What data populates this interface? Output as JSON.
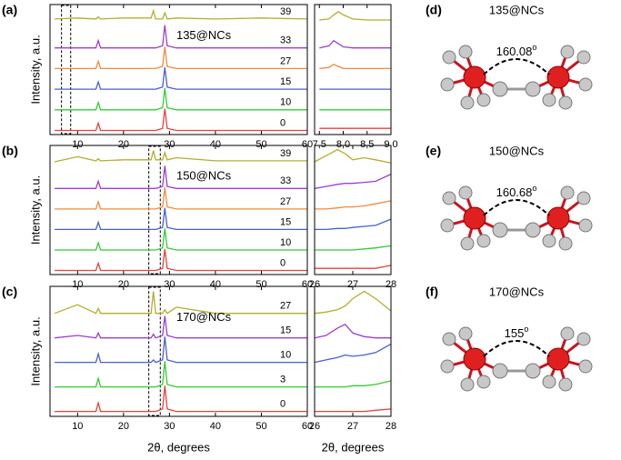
{
  "chart_data": [
    {
      "type": "line",
      "panel_label": "(a)",
      "annotation": "135@NCs",
      "ylabel": "Intensity, a.u.",
      "x": [
        5,
        10,
        14,
        14.5,
        15,
        20,
        26,
        26.5,
        27,
        28.5,
        29,
        29.5,
        31.5,
        40,
        50,
        60
      ],
      "xlim": [
        4,
        60
      ],
      "xticks": [
        10,
        20,
        30,
        40,
        50,
        60
      ],
      "ylim": [
        0,
        6.3
      ],
      "highlight_x": [
        6.5,
        8.5
      ],
      "series": [
        {
          "name": "0",
          "color": "#e8413c",
          "values": [
            0.2,
            0.2,
            0.2,
            0.55,
            0.2,
            0.2,
            0.2,
            0.2,
            0.2,
            0.3,
            1.25,
            0.3,
            0.2,
            0.2,
            0.2,
            0.2
          ]
        },
        {
          "name": "10",
          "color": "#33cc33",
          "values": [
            1.2,
            1.2,
            1.2,
            1.55,
            1.2,
            1.2,
            1.2,
            1.2,
            1.2,
            1.3,
            2.25,
            1.3,
            1.2,
            1.2,
            1.2,
            1.2
          ]
        },
        {
          "name": "15",
          "color": "#4a5fd0",
          "values": [
            2.2,
            2.2,
            2.2,
            2.55,
            2.2,
            2.2,
            2.2,
            2.2,
            2.2,
            2.3,
            3.25,
            2.3,
            2.2,
            2.2,
            2.2,
            2.2
          ]
        },
        {
          "name": "27",
          "color": "#f08a3c",
          "values": [
            3.2,
            3.2,
            3.2,
            3.55,
            3.2,
            3.2,
            3.2,
            3.2,
            3.2,
            3.3,
            4.25,
            3.3,
            3.2,
            3.2,
            3.2,
            3.2
          ]
        },
        {
          "name": "33",
          "color": "#9b3fd0",
          "values": [
            4.2,
            4.2,
            4.2,
            4.55,
            4.2,
            4.2,
            4.2,
            4.2,
            4.2,
            4.3,
            5.3,
            4.3,
            4.2,
            4.2,
            4.2,
            4.2
          ]
        },
        {
          "name": "39",
          "color": "#b5ad2e",
          "values": [
            5.6,
            5.65,
            5.6,
            5.7,
            5.6,
            5.65,
            5.65,
            6.0,
            5.6,
            5.6,
            5.9,
            5.6,
            5.65,
            5.6,
            5.65,
            5.6
          ]
        }
      ]
    },
    {
      "type": "line",
      "x": [
        7.5,
        7.7,
        7.8,
        7.9,
        8.0,
        8.2,
        8.5,
        9.0
      ],
      "xlim": [
        7.4,
        9.0
      ],
      "xticks": [
        {
          "value": 7.5,
          "label": "7,5"
        },
        {
          "value": 8.0,
          "label": "8,0"
        },
        {
          "value": 8.5,
          "label": "8,5"
        },
        {
          "value": 9.0,
          "label": "9,0"
        }
      ],
      "ylim": [
        0,
        6.3
      ],
      "series": [
        {
          "color": "#e8413c",
          "values": [
            0.3,
            0.3,
            0.3,
            0.3,
            0.3,
            0.3,
            0.3,
            0.3
          ]
        },
        {
          "color": "#33cc33",
          "values": [
            1.2,
            1.2,
            1.2,
            1.2,
            1.2,
            1.2,
            1.2,
            1.2
          ]
        },
        {
          "color": "#4a5fd0",
          "values": [
            2.2,
            2.2,
            2.2,
            2.2,
            2.2,
            2.2,
            2.2,
            2.2
          ]
        },
        {
          "color": "#f08a3c",
          "values": [
            3.2,
            3.25,
            3.4,
            3.3,
            3.2,
            3.2,
            3.2,
            3.2
          ]
        },
        {
          "color": "#9b3fd0",
          "values": [
            4.2,
            4.3,
            4.55,
            4.4,
            4.25,
            4.2,
            4.2,
            4.2
          ]
        },
        {
          "color": "#b5ad2e",
          "values": [
            5.55,
            5.6,
            5.8,
            5.95,
            5.8,
            5.6,
            5.55,
            5.55
          ]
        }
      ]
    },
    {
      "type": "line",
      "panel_label": "(b)",
      "annotation": "150@NCs",
      "ylabel": "Intensity, a.u.",
      "x": [
        5,
        10,
        14,
        14.5,
        15,
        20,
        26,
        26.5,
        27,
        28.5,
        29,
        29.5,
        31.5,
        40,
        50,
        60
      ],
      "xlim": [
        4,
        60
      ],
      "xticks": [
        10,
        20,
        30,
        40,
        50,
        60
      ],
      "ylim": [
        0,
        6.3
      ],
      "highlight_x": [
        25.5,
        28
      ],
      "series": [
        {
          "name": "0",
          "color": "#e8413c",
          "values": [
            0.2,
            0.2,
            0.2,
            0.55,
            0.2,
            0.2,
            0.2,
            0.2,
            0.2,
            0.3,
            1.25,
            0.3,
            0.2,
            0.2,
            0.2,
            0.2
          ]
        },
        {
          "name": "10",
          "color": "#33cc33",
          "values": [
            1.2,
            1.2,
            1.2,
            1.55,
            1.2,
            1.2,
            1.2,
            1.2,
            1.2,
            1.3,
            2.25,
            1.3,
            1.2,
            1.2,
            1.2,
            1.2
          ]
        },
        {
          "name": "15",
          "color": "#4a5fd0",
          "values": [
            2.2,
            2.2,
            2.2,
            2.55,
            2.2,
            2.2,
            2.2,
            2.2,
            2.2,
            2.3,
            3.25,
            2.3,
            2.2,
            2.2,
            2.2,
            2.2
          ]
        },
        {
          "name": "27",
          "color": "#f08a3c",
          "values": [
            3.2,
            3.2,
            3.2,
            3.55,
            3.2,
            3.2,
            3.2,
            3.2,
            3.2,
            3.3,
            4.25,
            3.3,
            3.2,
            3.2,
            3.2,
            3.2
          ]
        },
        {
          "name": "33",
          "color": "#9b3fd0",
          "values": [
            4.2,
            4.2,
            4.2,
            4.55,
            4.2,
            4.2,
            4.2,
            4.2,
            4.2,
            4.3,
            5.3,
            4.3,
            4.2,
            4.2,
            4.2,
            4.2
          ]
        },
        {
          "name": "39",
          "color": "#b5ad2e",
          "values": [
            5.5,
            5.75,
            5.55,
            5.65,
            5.55,
            5.6,
            5.6,
            6.05,
            5.6,
            5.6,
            5.95,
            5.6,
            5.7,
            5.55,
            5.55,
            5.55
          ]
        }
      ]
    },
    {
      "type": "line",
      "x": [
        26,
        26.3,
        26.6,
        26.8,
        27,
        27.3,
        27.6,
        28
      ],
      "xlim": [
        26,
        28
      ],
      "xticks": [
        26,
        27,
        28
      ],
      "ylim": [
        0,
        6.3
      ],
      "series": [
        {
          "color": "#e8413c",
          "values": [
            0.3,
            0.3,
            0.3,
            0.3,
            0.3,
            0.3,
            0.3,
            0.45
          ]
        },
        {
          "color": "#33cc33",
          "values": [
            1.2,
            1.2,
            1.2,
            1.2,
            1.2,
            1.25,
            1.3,
            1.4
          ]
        },
        {
          "color": "#4a5fd0",
          "values": [
            2.2,
            2.2,
            2.25,
            2.25,
            2.3,
            2.35,
            2.4,
            2.7
          ]
        },
        {
          "color": "#f08a3c",
          "values": [
            3.2,
            3.2,
            3.25,
            3.3,
            3.3,
            3.35,
            3.45,
            3.6
          ]
        },
        {
          "color": "#9b3fd0",
          "values": [
            4.2,
            4.3,
            4.4,
            4.45,
            4.45,
            4.5,
            4.55,
            4.9
          ]
        },
        {
          "color": "#b5ad2e",
          "values": [
            5.5,
            5.8,
            6.1,
            5.9,
            5.6,
            5.7,
            5.6,
            5.45
          ]
        }
      ]
    },
    {
      "type": "line",
      "panel_label": "(c)",
      "annotation": "170@NCs",
      "ylabel": "Intensity, a.u.",
      "xlabel": "2θ, degrees",
      "x": [
        5,
        10,
        14,
        14.5,
        15,
        20,
        26,
        26.5,
        27,
        28.5,
        29,
        29.5,
        31.5,
        40,
        50,
        60
      ],
      "xlim": [
        4,
        60
      ],
      "xticks": [
        10,
        20,
        30,
        40,
        50,
        60
      ],
      "ylim": [
        0,
        5.3
      ],
      "highlight_x": [
        25.5,
        28
      ],
      "series": [
        {
          "name": "0",
          "color": "#e8413c",
          "values": [
            0.2,
            0.2,
            0.2,
            0.55,
            0.2,
            0.2,
            0.2,
            0.2,
            0.2,
            0.3,
            1.25,
            0.3,
            0.2,
            0.2,
            0.2,
            0.2
          ]
        },
        {
          "name": "3",
          "color": "#33cc33",
          "values": [
            1.2,
            1.2,
            1.2,
            1.55,
            1.2,
            1.2,
            1.2,
            1.2,
            1.2,
            1.3,
            2.25,
            1.3,
            1.2,
            1.2,
            1.2,
            1.2
          ]
        },
        {
          "name": "10",
          "color": "#4a5fd0",
          "values": [
            2.2,
            2.2,
            2.2,
            2.55,
            2.2,
            2.2,
            2.2,
            2.3,
            2.2,
            2.3,
            3.25,
            2.3,
            2.2,
            2.2,
            2.2,
            2.2
          ]
        },
        {
          "name": "15",
          "color": "#9b3fd0",
          "values": [
            3.2,
            3.3,
            3.2,
            3.4,
            3.2,
            3.2,
            3.2,
            3.35,
            3.2,
            3.3,
            4.1,
            3.3,
            3.2,
            3.2,
            3.2,
            3.2
          ]
        },
        {
          "name": "27",
          "color": "#b5ad2e",
          "values": [
            4.2,
            4.55,
            4.2,
            4.4,
            4.2,
            4.2,
            4.2,
            5.1,
            4.2,
            4.2,
            4.35,
            4.2,
            4.45,
            4.2,
            4.2,
            4.2
          ]
        }
      ]
    },
    {
      "type": "line",
      "xlabel": "2θ, degrees",
      "x": [
        26,
        26.3,
        26.6,
        26.8,
        27,
        27.3,
        27.6,
        28
      ],
      "xlim": [
        26,
        28
      ],
      "xticks": [
        26,
        27,
        28
      ],
      "ylim": [
        0,
        5.3
      ],
      "series": [
        {
          "color": "#e8413c",
          "values": [
            0.2,
            0.2,
            0.2,
            0.2,
            0.2,
            0.2,
            0.25,
            0.3
          ]
        },
        {
          "color": "#33cc33",
          "values": [
            1.2,
            1.2,
            1.2,
            1.2,
            1.25,
            1.25,
            1.3,
            1.45
          ]
        },
        {
          "color": "#4a5fd0",
          "values": [
            2.2,
            2.3,
            2.4,
            2.5,
            2.45,
            2.5,
            2.6,
            2.95
          ]
        },
        {
          "color": "#9b3fd0",
          "values": [
            3.2,
            3.3,
            3.6,
            3.75,
            3.4,
            3.25,
            3.2,
            3.2
          ]
        },
        {
          "color": "#b5ad2e",
          "values": [
            4.2,
            4.25,
            4.35,
            4.5,
            4.8,
            5.1,
            4.8,
            4.3
          ]
        }
      ]
    }
  ],
  "structures": [
    {
      "label": "(d)",
      "title": "135@NCs",
      "angle": "160.08",
      "angle_unit": "o"
    },
    {
      "label": "(e)",
      "title": "150@NCs",
      "angle": "160.68",
      "angle_unit": "o"
    },
    {
      "label": "(f)",
      "title": "170@NCs",
      "angle": "155",
      "angle_unit": "o"
    }
  ]
}
